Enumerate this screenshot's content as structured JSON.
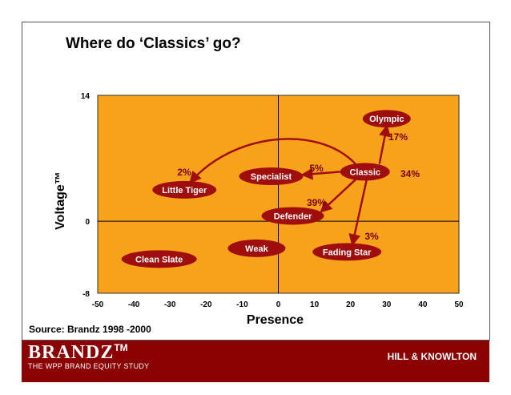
{
  "title": "Where do ‘Classics’ go?",
  "source": "Source:  Brandz 1998 -2000",
  "footer": {
    "brand_logo": "BRANDZ",
    "brand_tm": "TM",
    "brand_tagline": "THE WPP BRAND EQUITY STUDY",
    "agency_logo": "HILL & KNOWLTON"
  },
  "colors": {
    "plot_bg": "#f7a21b",
    "bubble": "#a00d0d",
    "arrow": "#a00d0d",
    "footer": "#8b0000"
  },
  "chart_data": {
    "type": "scatter",
    "xlabel": "Presence",
    "ylabel": "Voltage™",
    "xlim": [
      -50,
      50
    ],
    "ylim": [
      -8,
      14
    ],
    "xticks": [
      "-50",
      "-40",
      "-30",
      "-20",
      "-10",
      "0",
      "10",
      "20",
      "30",
      "40",
      "50"
    ],
    "yticks": [
      {
        "value": 14,
        "label": "14"
      },
      {
        "value": 0,
        "label": "0"
      },
      {
        "value": -8,
        "label": "-8"
      }
    ],
    "grid": false,
    "points": [
      {
        "label": "Olympic",
        "x": 30,
        "y": 11.4
      },
      {
        "label": "Classic",
        "x": 24,
        "y": 5.5
      },
      {
        "label": "Specialist",
        "x": -2,
        "y": 5.0
      },
      {
        "label": "Little Tiger",
        "x": -26,
        "y": 3.5
      },
      {
        "label": "Defender",
        "x": 4,
        "y": 0.6
      },
      {
        "label": "Weak",
        "x": -6,
        "y": -3.0
      },
      {
        "label": "Fading Star",
        "x": 19,
        "y": -3.4
      },
      {
        "label": "Clean Slate",
        "x": -33,
        "y": -4.2
      }
    ],
    "transitions": [
      {
        "from": "Classic",
        "to": "Olympic",
        "value": "17%"
      },
      {
        "from": "Classic",
        "to": "Little Tiger",
        "value": "2%"
      },
      {
        "from": "Classic",
        "to": "Specialist",
        "value": "5%"
      },
      {
        "from": "Classic",
        "to": "Defender",
        "value": "39%"
      },
      {
        "from": "Classic",
        "to": "Fading Star",
        "value": "3%"
      },
      {
        "from": "Classic",
        "to": "Classic",
        "value": "34%"
      }
    ]
  }
}
